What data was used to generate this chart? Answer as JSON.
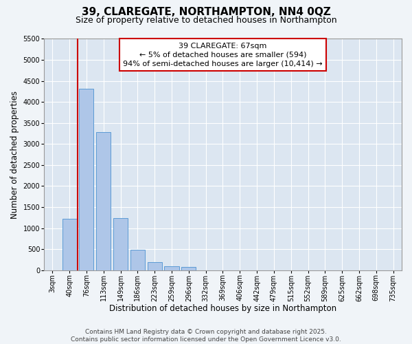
{
  "title1": "39, CLAREGATE, NORTHAMPTON, NN4 0QZ",
  "title2": "Size of property relative to detached houses in Northampton",
  "xlabel": "Distribution of detached houses by size in Northampton",
  "ylabel": "Number of detached properties",
  "categories": [
    "3sqm",
    "40sqm",
    "76sqm",
    "113sqm",
    "149sqm",
    "186sqm",
    "223sqm",
    "259sqm",
    "296sqm",
    "332sqm",
    "369sqm",
    "406sqm",
    "442sqm",
    "479sqm",
    "515sqm",
    "552sqm",
    "589sqm",
    "625sqm",
    "662sqm",
    "698sqm",
    "735sqm"
  ],
  "values": [
    0,
    1220,
    4320,
    3280,
    1240,
    490,
    200,
    100,
    80,
    0,
    0,
    0,
    0,
    0,
    0,
    0,
    0,
    0,
    0,
    0,
    0
  ],
  "bar_color": "#aec6e8",
  "bar_edge_color": "#5b9bd5",
  "bg_color": "#dce6f1",
  "fig_bg_color": "#f0f4f8",
  "annotation_line1": "39 CLAREGATE: 67sqm",
  "annotation_line2": "← 5% of detached houses are smaller (594)",
  "annotation_line3": "94% of semi-detached houses are larger (10,414) →",
  "annotation_box_color": "#ffffff",
  "annotation_box_edge": "#cc0000",
  "vline_x": 1.5,
  "vline_color": "#cc0000",
  "ylim_max": 5500,
  "yticks": [
    0,
    500,
    1000,
    1500,
    2000,
    2500,
    3000,
    3500,
    4000,
    4500,
    5000,
    5500
  ],
  "footer1": "Contains HM Land Registry data © Crown copyright and database right 2025.",
  "footer2": "Contains public sector information licensed under the Open Government Licence v3.0.",
  "title_fontsize": 11,
  "subtitle_fontsize": 9,
  "axis_label_fontsize": 8.5,
  "tick_fontsize": 7,
  "annot_fontsize": 8,
  "footer_fontsize": 6.5
}
